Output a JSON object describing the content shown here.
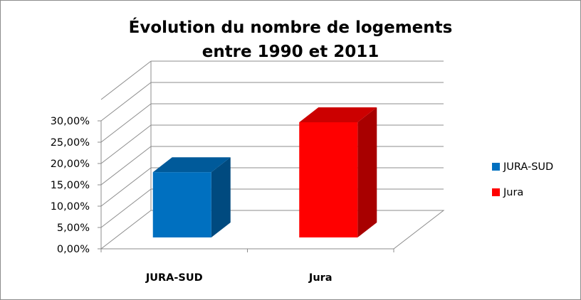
{
  "chart_data": {
    "type": "bar",
    "title_lines": [
      "Évolution du nombre de logements",
      "entre 1990 et 2011"
    ],
    "categories": [
      "JURA-SUD",
      "Jura"
    ],
    "values": [
      15.3,
      27.0
    ],
    "colors": [
      "#0070C0",
      "#FF0000"
    ],
    "ylim": [
      0,
      30
    ],
    "yticks": [
      0,
      5,
      10,
      15,
      20,
      25,
      30
    ],
    "ytick_labels": [
      "0,00%",
      "5,00%",
      "10,00%",
      "15,00%",
      "20,00%",
      "25,00%",
      "30,00%"
    ],
    "grid": true,
    "legend": {
      "position": "right",
      "entries": [
        {
          "label": "JURA-SUD",
          "color": "#0070C0"
        },
        {
          "label": "Jura",
          "color": "#FF0000"
        }
      ]
    }
  }
}
